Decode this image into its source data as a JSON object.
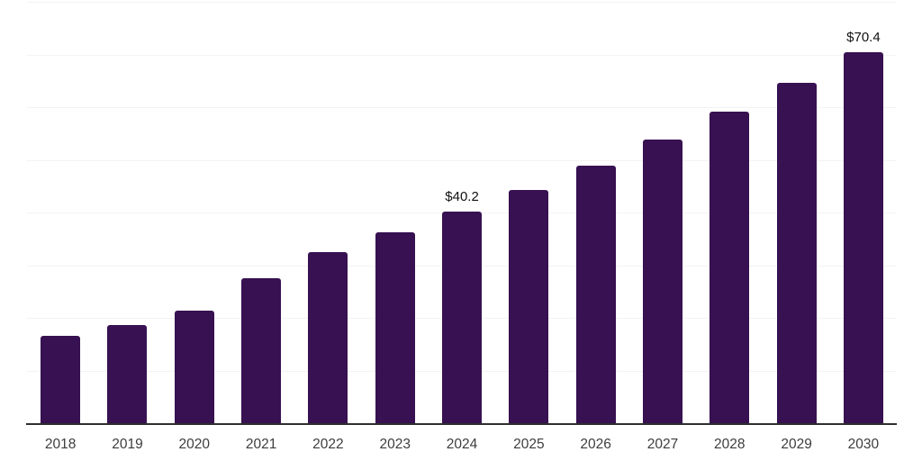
{
  "chart_data": {
    "type": "bar",
    "title": "",
    "xlabel": "",
    "ylabel": "",
    "categories": [
      "2018",
      "2019",
      "2020",
      "2021",
      "2022",
      "2023",
      "2024",
      "2025",
      "2026",
      "2027",
      "2028",
      "2029",
      "2030"
    ],
    "values": [
      16.6,
      18.7,
      21.4,
      27.5,
      32.5,
      36.3,
      40.2,
      44.3,
      48.9,
      53.9,
      59.1,
      64.6,
      70.4
    ],
    "annotations": [
      {
        "category": "2024",
        "text": "$40.2"
      },
      {
        "category": "2030",
        "text": "$70.4"
      }
    ],
    "ylim": [
      0,
      80
    ],
    "grid_step": 10,
    "grid": "horizontal-only",
    "y_axis_labels": "hidden",
    "legend_position": "none",
    "colors": {
      "bar": "#371151",
      "axis": "#2e2e2e",
      "gridline": "#f3f3f3",
      "value_label": "#111111",
      "tick_label": "#3d3d3d",
      "background": "#ffffff"
    }
  }
}
